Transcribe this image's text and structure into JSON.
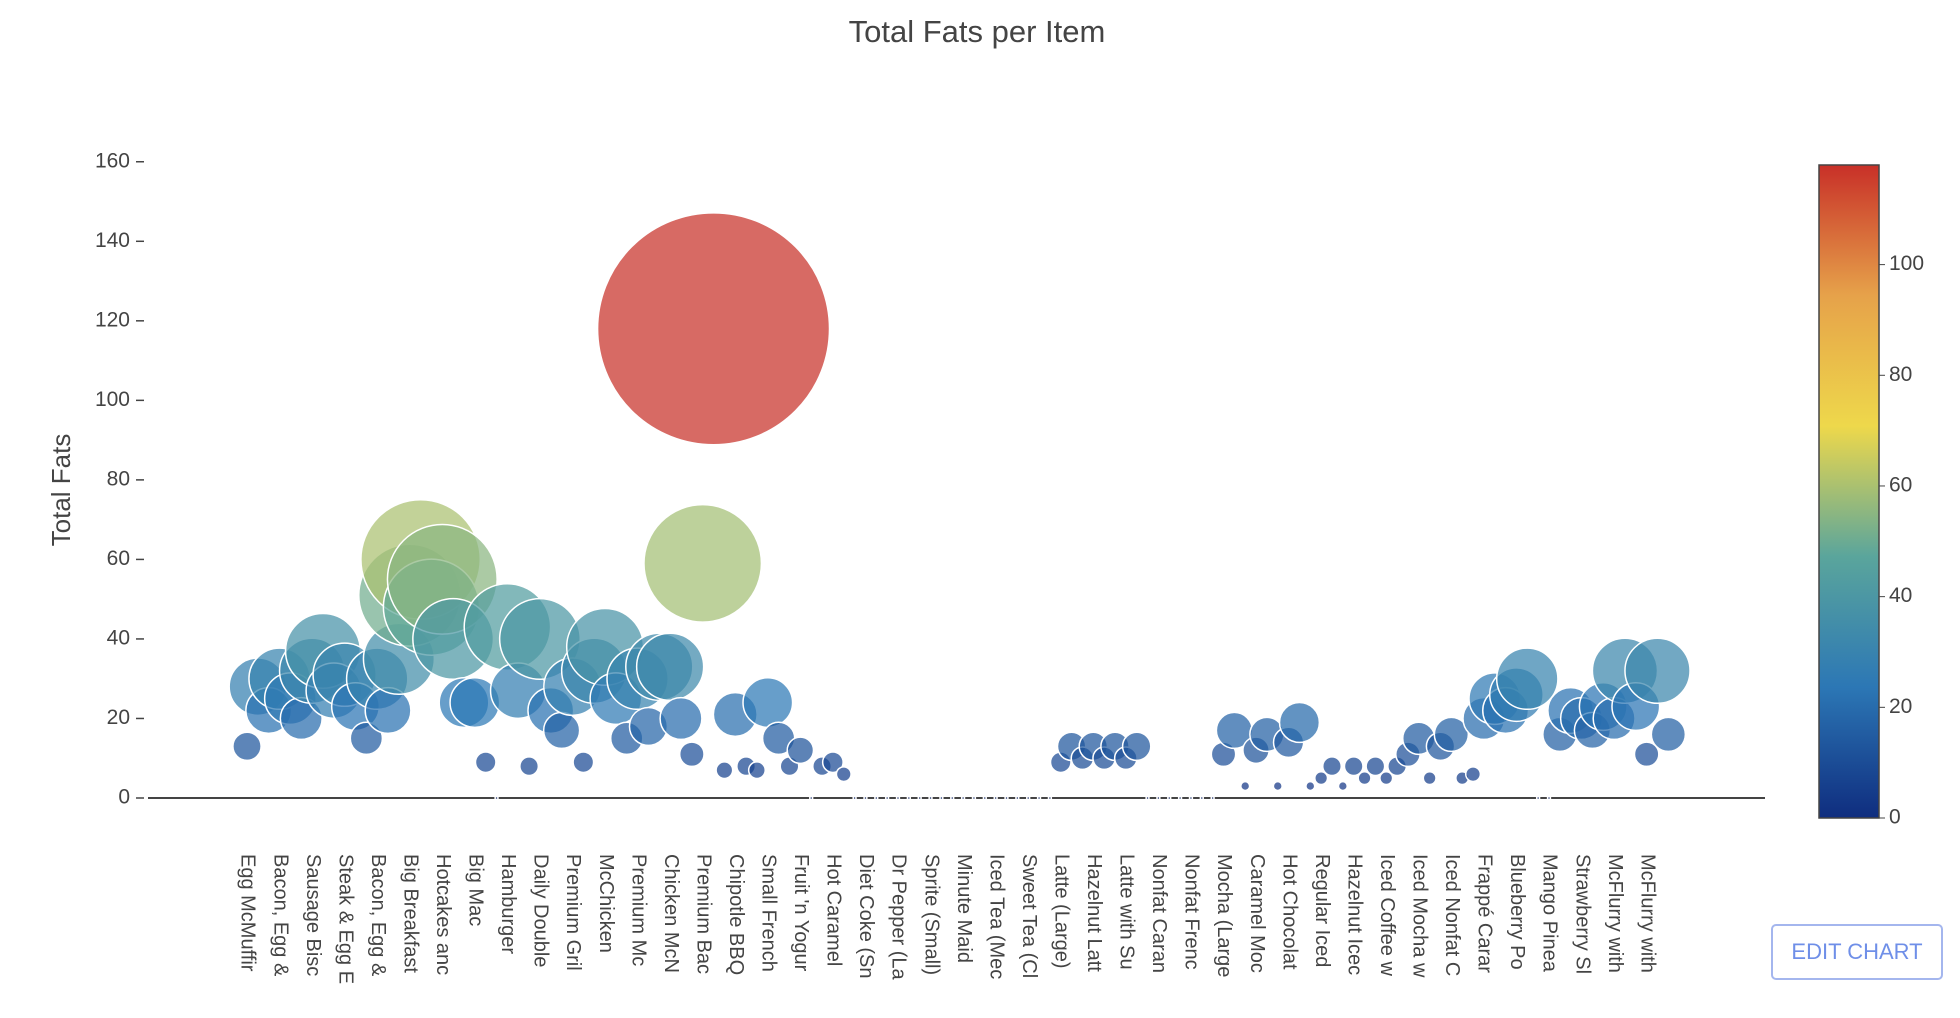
{
  "chart_data": {
    "type": "bubble",
    "title": "Total Fats per Item",
    "y_label": "Total Fats",
    "categories": [
      "Egg McMuffir",
      null,
      null,
      "Bacon, Egg &",
      null,
      null,
      "Sausage Bisc",
      null,
      null,
      "Steak & Egg E",
      null,
      null,
      "Bacon, Egg &",
      null,
      null,
      "Big Breakfast",
      null,
      null,
      "Hotcakes anc",
      null,
      null,
      "Big Mac",
      null,
      null,
      "Hamburger",
      null,
      null,
      "Daily Double",
      null,
      null,
      "Premium Gril",
      null,
      null,
      "McChicken",
      null,
      null,
      "Premium Mc",
      null,
      null,
      "Chicken McN",
      null,
      null,
      "Premium Bac",
      null,
      null,
      "Chipotle BBQ",
      null,
      null,
      "Small French",
      null,
      null,
      "Fruit 'n Yogur",
      null,
      null,
      "Hot Caramel",
      null,
      null,
      "Diet Coke (Sn",
      null,
      null,
      "Dr Pepper (La",
      null,
      null,
      "Sprite (Small)",
      null,
      null,
      "Minute Maid",
      null,
      null,
      "Iced Tea (Mec",
      null,
      null,
      "Sweet Tea (Cl",
      null,
      null,
      "Latte (Large)",
      null,
      null,
      "Hazelnut Latt",
      null,
      null,
      "Latte with Su",
      null,
      null,
      "Nonfat Caran",
      null,
      null,
      "Nonfat Frenc",
      null,
      null,
      "Mocha (Large",
      null,
      null,
      "Caramel Moc",
      null,
      null,
      "Hot Chocolat",
      null,
      null,
      "Regular Iced",
      null,
      null,
      "Hazelnut Icec",
      null,
      null,
      "Iced Coffee w",
      null,
      null,
      "Iced Mocha w",
      null,
      null,
      "Iced Nonfat C",
      null,
      null,
      "Frappé Carar",
      null,
      null,
      "Blueberry Po",
      null,
      null,
      "Mango Pinea",
      null,
      null,
      "Strawberry Sl",
      null,
      null,
      "McFlurry with",
      null,
      null,
      "McFlurry with",
      null,
      null
    ],
    "values": [
      13,
      28,
      22,
      30,
      25,
      20,
      32,
      37,
      27,
      31,
      23,
      15,
      30,
      22,
      35,
      51,
      60,
      48,
      55,
      40,
      24,
      24,
      9,
      0,
      43,
      27,
      8,
      40,
      22,
      17,
      28,
      9,
      32,
      38,
      25,
      15,
      30,
      18,
      33,
      33,
      20,
      11,
      59,
      118,
      7,
      21,
      8,
      7,
      24,
      15,
      8,
      12,
      0,
      8,
      9,
      6,
      0,
      0,
      0,
      0,
      0,
      0,
      0,
      0,
      0,
      0,
      0,
      0,
      0,
      0,
      0,
      0,
      0,
      0,
      0,
      9,
      13,
      10,
      13,
      10,
      13,
      10,
      13,
      0,
      0,
      0,
      0,
      0,
      0,
      0,
      11,
      17,
      3,
      12,
      16,
      3,
      14,
      19,
      3,
      5,
      8,
      3,
      8,
      5,
      8,
      5,
      8,
      11,
      15,
      5,
      13,
      16,
      5,
      6,
      20,
      25,
      22,
      26,
      30,
      0,
      0,
      16,
      22,
      20,
      17,
      23,
      20,
      32,
      23,
      11,
      32,
      16
    ],
    "ylim": [
      0,
      170
    ],
    "yticks": [
      0,
      20,
      40,
      60,
      80,
      100,
      120,
      140,
      160
    ],
    "grid": false,
    "clim": [
      0,
      118
    ],
    "colorbar_ticks": [
      0,
      20,
      40,
      60,
      80,
      100
    ],
    "colorscale": [
      "#0f2d7f",
      "#2c77b5",
      "#5aa59c",
      "#eed84b",
      "#e6a24a",
      "#c83028"
    ]
  },
  "edit_button": "EDIT CHART"
}
